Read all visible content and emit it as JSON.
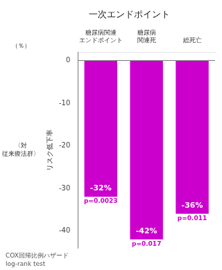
{
  "chart_data": {
    "type": "bar",
    "title": "一次エンドポイント",
    "ylabel": "リスク低下率",
    "categories": [
      "糖尿病関連\nエンドポイント",
      "糖尿病\n関連死",
      "総死亡"
    ],
    "values": [
      -32,
      -42,
      -36
    ],
    "value_labels": [
      "-32%",
      "-42%",
      "-36%"
    ],
    "data_labels": true,
    "color": "#cc00cc",
    "ylim": [
      -44,
      2
    ],
    "yticks": [
      0,
      -10,
      -20,
      -30,
      -40
    ],
    "grid": false,
    "annotations": [
      {
        "text": "p=0.0023",
        "category": "糖尿病関連\nエンドポイント",
        "color": "#cc00cc"
      },
      {
        "text": "p=0.017",
        "category": "糖尿病\n関連死",
        "color": "#cc00cc"
      },
      {
        "text": "p=0.011",
        "category": "総死亡",
        "color": "#cc00cc"
      },
      {
        "text": "（％）"
      },
      {
        "text": "〈対\n従来療法群〉"
      }
    ],
    "footer": [
      "COX回帰比例ハザード",
      "log-rank test"
    ]
  }
}
